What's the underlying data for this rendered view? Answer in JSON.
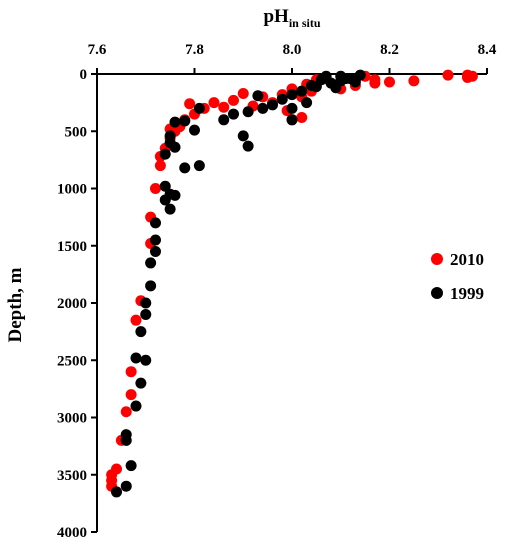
{
  "chart_data": {
    "type": "scatter",
    "title": "",
    "xlabel_main": "pH",
    "xlabel_sub": "in situ",
    "ylabel": "Depth, m",
    "xlim": [
      7.6,
      8.4
    ],
    "ylim": [
      0,
      4000
    ],
    "y_reversed": true,
    "x_axis_position": "top",
    "x_ticks": [
      "7.6",
      "7.8",
      "8.0",
      "8.2",
      "8.4"
    ],
    "y_ticks": [
      "0",
      "500",
      "1000",
      "1500",
      "2000",
      "2500",
      "3000",
      "3500",
      "4000"
    ],
    "grid": false,
    "legend_position": "right",
    "series": [
      {
        "name": "2010",
        "color": "#ff0000",
        "points": [
          [
            8.36,
            10
          ],
          [
            8.37,
            20
          ],
          [
            8.32,
            10
          ],
          [
            8.36,
            30
          ],
          [
            8.25,
            60
          ],
          [
            8.2,
            70
          ],
          [
            8.17,
            50
          ],
          [
            8.15,
            20
          ],
          [
            8.17,
            80
          ],
          [
            8.13,
            100
          ],
          [
            8.1,
            130
          ],
          [
            8.05,
            50
          ],
          [
            8.04,
            150
          ],
          [
            8.03,
            90
          ],
          [
            8.02,
            200
          ],
          [
            8.0,
            130
          ],
          [
            7.98,
            180
          ],
          [
            7.96,
            250
          ],
          [
            7.94,
            200
          ],
          [
            7.92,
            280
          ],
          [
            7.9,
            170
          ],
          [
            7.88,
            230
          ],
          [
            7.86,
            290
          ],
          [
            7.84,
            250
          ],
          [
            7.82,
            300
          ],
          [
            7.8,
            350
          ],
          [
            7.79,
            260
          ],
          [
            7.78,
            400
          ],
          [
            7.77,
            460
          ],
          [
            7.76,
            500
          ],
          [
            7.75,
            480
          ],
          [
            7.75,
            560
          ],
          [
            7.74,
            650
          ],
          [
            7.73,
            720
          ],
          [
            7.73,
            800
          ],
          [
            7.72,
            1000
          ],
          [
            7.71,
            1250
          ],
          [
            7.71,
            1480
          ],
          [
            7.69,
            1980
          ],
          [
            7.68,
            2150
          ],
          [
            7.67,
            2600
          ],
          [
            7.67,
            2800
          ],
          [
            7.66,
            2950
          ],
          [
            7.65,
            3200
          ],
          [
            7.64,
            3450
          ],
          [
            7.63,
            3500
          ],
          [
            7.63,
            3550
          ],
          [
            7.63,
            3600
          ],
          [
            7.99,
            320
          ],
          [
            8.0,
            400
          ],
          [
            8.02,
            380
          ],
          [
            8.05,
            60
          ],
          [
            8.07,
            40
          ]
        ]
      },
      {
        "name": "1999",
        "color": "#000000",
        "points": [
          [
            8.14,
            10
          ],
          [
            8.1,
            20
          ],
          [
            8.12,
            40
          ],
          [
            8.06,
            50
          ],
          [
            8.08,
            80
          ],
          [
            8.04,
            100
          ],
          [
            8.09,
            120
          ],
          [
            8.02,
            150
          ],
          [
            8.0,
            180
          ],
          [
            7.98,
            220
          ],
          [
            7.96,
            270
          ],
          [
            7.94,
            300
          ],
          [
            7.93,
            190
          ],
          [
            7.91,
            330
          ],
          [
            7.88,
            350
          ],
          [
            7.86,
            400
          ],
          [
            7.9,
            540
          ],
          [
            7.91,
            630
          ],
          [
            7.81,
            300
          ],
          [
            7.8,
            490
          ],
          [
            7.78,
            410
          ],
          [
            7.76,
            420
          ],
          [
            7.75,
            540
          ],
          [
            7.75,
            600
          ],
          [
            7.74,
            700
          ],
          [
            7.76,
            640
          ],
          [
            7.78,
            820
          ],
          [
            7.81,
            800
          ],
          [
            7.74,
            980
          ],
          [
            7.75,
            1050
          ],
          [
            7.76,
            1060
          ],
          [
            7.74,
            1100
          ],
          [
            7.75,
            1180
          ],
          [
            7.72,
            1300
          ],
          [
            7.72,
            1450
          ],
          [
            7.72,
            1550
          ],
          [
            7.71,
            1650
          ],
          [
            7.71,
            1850
          ],
          [
            7.7,
            2000
          ],
          [
            7.7,
            2100
          ],
          [
            7.69,
            2250
          ],
          [
            7.7,
            2500
          ],
          [
            7.68,
            2480
          ],
          [
            7.69,
            2700
          ],
          [
            7.68,
            2900
          ],
          [
            7.66,
            3150
          ],
          [
            7.66,
            3200
          ],
          [
            7.67,
            3420
          ],
          [
            7.66,
            3600
          ],
          [
            7.64,
            3650
          ],
          [
            8.07,
            20
          ],
          [
            8.1,
            60
          ],
          [
            8.03,
            250
          ],
          [
            8.0,
            400
          ],
          [
            8.11,
            40
          ],
          [
            8.0,
            300
          ],
          [
            8.13,
            70
          ],
          [
            8.05,
            110
          ]
        ]
      }
    ]
  }
}
